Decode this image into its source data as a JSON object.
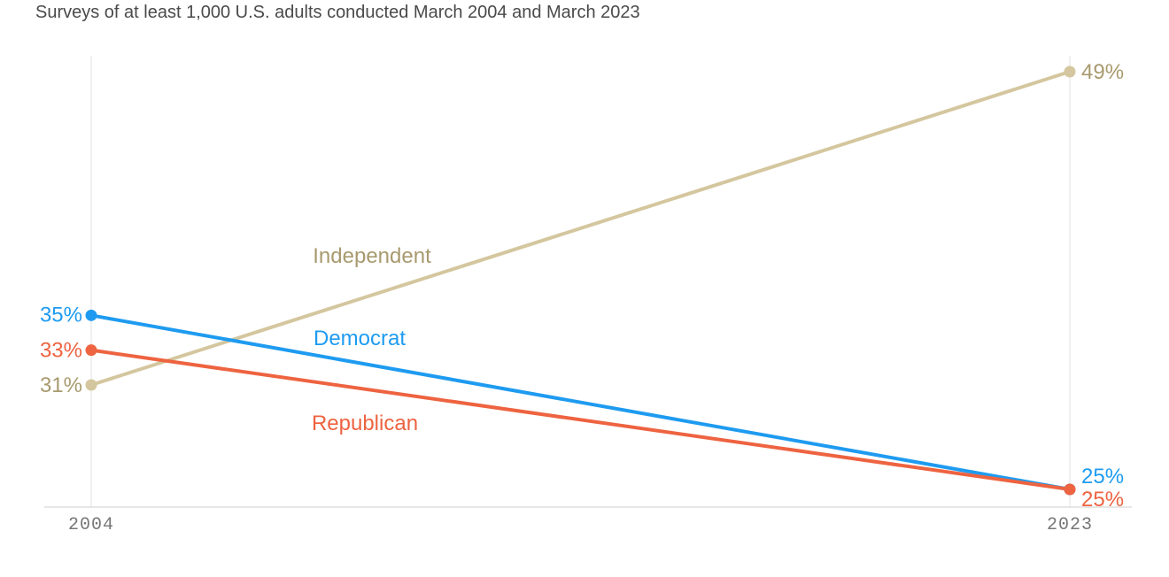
{
  "subtitle": "Surveys of at least 1,000 U.S. adults conducted March 2004 and March 2023",
  "chart_data": {
    "type": "line",
    "x": [
      "2004",
      "2023"
    ],
    "ylim": [
      22,
      51
    ],
    "grid": "vertical lines at each x",
    "legend": "inline labels on lines",
    "series": [
      {
        "name": "Independent",
        "values": [
          31,
          49
        ],
        "value_labels": [
          "31%",
          "49%"
        ],
        "color": "#d4c69e",
        "label_color": "#a89a6e"
      },
      {
        "name": "Democrat",
        "values": [
          35,
          25
        ],
        "value_labels": [
          "35%",
          "25%"
        ],
        "color": "#1e9bf0",
        "label_color": "#1e9bf0"
      },
      {
        "name": "Republican",
        "values": [
          33,
          25
        ],
        "value_labels": [
          "33%",
          "25%"
        ],
        "color": "#ee6340",
        "label_color": "#ee6340"
      }
    ]
  }
}
